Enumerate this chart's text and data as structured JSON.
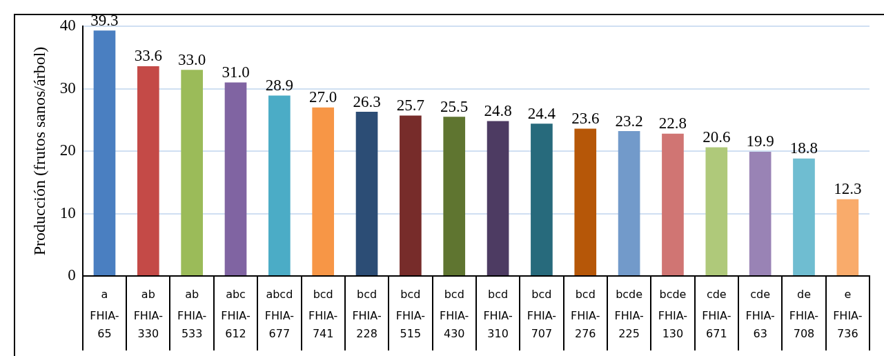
{
  "chart_data": {
    "type": "bar",
    "ylabel": "Producción (frutos sanos/árbol)",
    "categories": [
      "FHIA-65",
      "FHIA-330",
      "FHIA-533",
      "FHIA-612",
      "FHIA-677",
      "FHIA-741",
      "FHIA-228",
      "FHIA-515",
      "FHIA-430",
      "FHIA-310",
      "FHIA-707",
      "FHIA-276",
      "FHIA-225",
      "FHIA-130",
      "FHIA-671",
      "FHIA-63",
      "FHIA-708",
      "FHIA-736"
    ],
    "values": [
      39.3,
      33.6,
      33.0,
      31.0,
      28.9,
      27.0,
      26.3,
      25.7,
      25.5,
      24.8,
      24.4,
      23.6,
      23.2,
      22.8,
      20.6,
      19.9,
      18.8,
      12.3
    ],
    "colors": [
      "#4a7fc1",
      "#c44a47",
      "#9bbb59",
      "#8064a2",
      "#4bacc6",
      "#f79646",
      "#2c4d75",
      "#772c2a",
      "#5f7530",
      "#4d3b62",
      "#276a7c",
      "#b65708",
      "#729aca",
      "#d07573",
      "#afc97a",
      "#9983b5",
      "#6fbdd1",
      "#f9ab6b"
    ],
    "value_labels": [
      "39.3",
      "33.6",
      "33.0",
      "31.0",
      "28.9",
      "27.0",
      "26.3",
      "25.7",
      "25.5",
      "24.8",
      "24.4",
      "23.6",
      "23.2",
      "22.8",
      "20.6",
      "19.9",
      "18.8",
      "12.3"
    ],
    "annotations": [
      "a",
      "ab",
      "ab",
      "abc",
      "abcd",
      "bcd",
      "bcd",
      "bcd",
      "bcd",
      "bcd",
      "bcd",
      "bcd",
      "bcde",
      "bcde",
      "cde",
      "cde",
      "de",
      "e"
    ],
    "ylim": [
      0,
      40
    ],
    "yticks": [
      0,
      10,
      20,
      30,
      40
    ],
    "grid": "y",
    "legend": false
  }
}
